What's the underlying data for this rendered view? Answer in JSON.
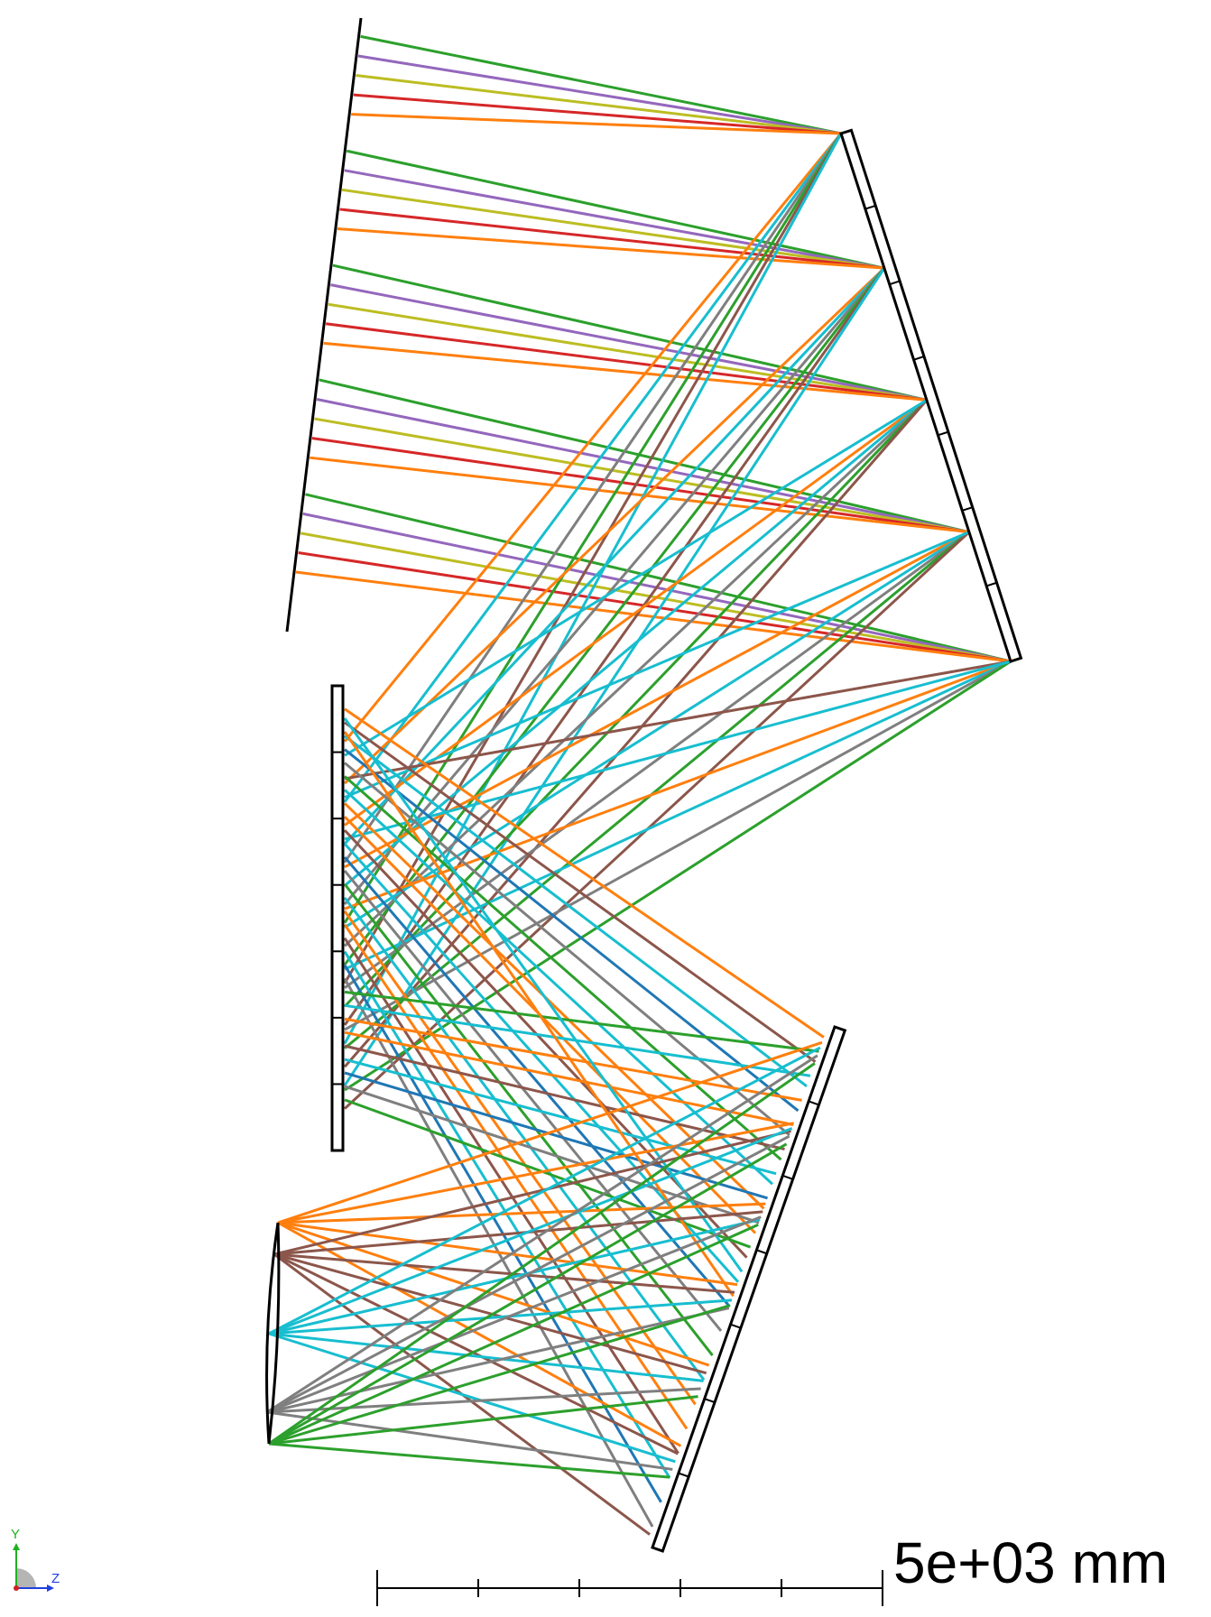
{
  "diagram": {
    "scale_bar": {
      "label": "5e+03 mm",
      "divisions": 5
    },
    "axis_triad": {
      "y_label": "Y",
      "z_label": "Z"
    },
    "colors": {
      "optic": "#000000",
      "green": "#2ca02c",
      "purple": "#9467bd",
      "olive": "#bcbd22",
      "red": "#d62728",
      "orange": "#ff7f0e",
      "brown": "#8c564b",
      "cyan": "#17becf",
      "gray": "#7f7f7f",
      "blue": "#1f77b4"
    }
  }
}
